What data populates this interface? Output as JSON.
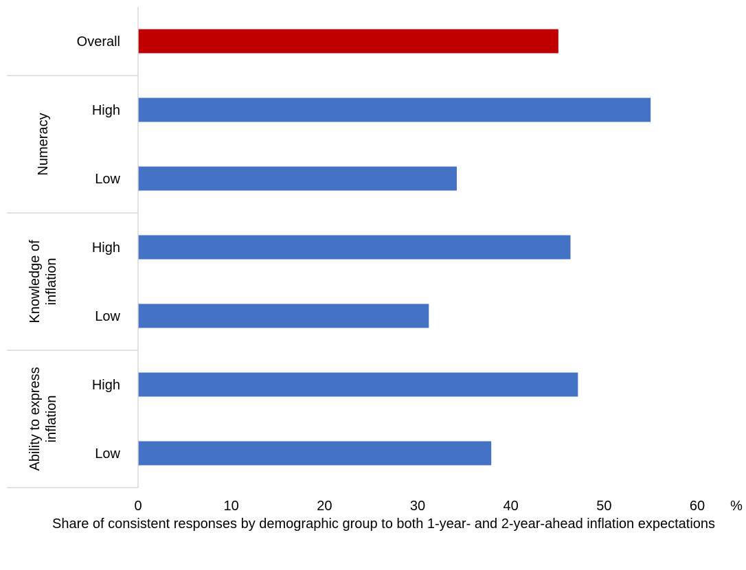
{
  "chart_data": {
    "type": "bar",
    "orientation": "horizontal",
    "unit_label": "%",
    "xlim": [
      0,
      60
    ],
    "x_ticks": [
      "0",
      "10",
      "20",
      "30",
      "40",
      "50",
      "60"
    ],
    "grid": false,
    "groups": [
      {
        "name": "",
        "rows": [
          {
            "label": "Overall",
            "value": 45.1,
            "color": "#c00000"
          }
        ]
      },
      {
        "name": "Numeracy",
        "rows": [
          {
            "label": "High",
            "value": 55.0,
            "color": "#4472c4"
          },
          {
            "label": "Low",
            "value": 34.2,
            "color": "#4472c4"
          }
        ]
      },
      {
        "name": "Knowledge of inflation",
        "name_lines": [
          "Knowledge of",
          "inflation"
        ],
        "rows": [
          {
            "label": "High",
            "value": 46.4,
            "color": "#4472c4"
          },
          {
            "label": "Low",
            "value": 31.2,
            "color": "#4472c4"
          }
        ]
      },
      {
        "name": "Ability to express inflation",
        "name_lines": [
          "Ability to express",
          "inflation"
        ],
        "rows": [
          {
            "label": "High",
            "value": 47.2,
            "color": "#4472c4"
          },
          {
            "label": "Low",
            "value": 37.9,
            "color": "#4472c4"
          }
        ]
      }
    ]
  },
  "caption": "Share of consistent responses by demographic group to both 1-year- and 2-year-ahead inflation expectations"
}
